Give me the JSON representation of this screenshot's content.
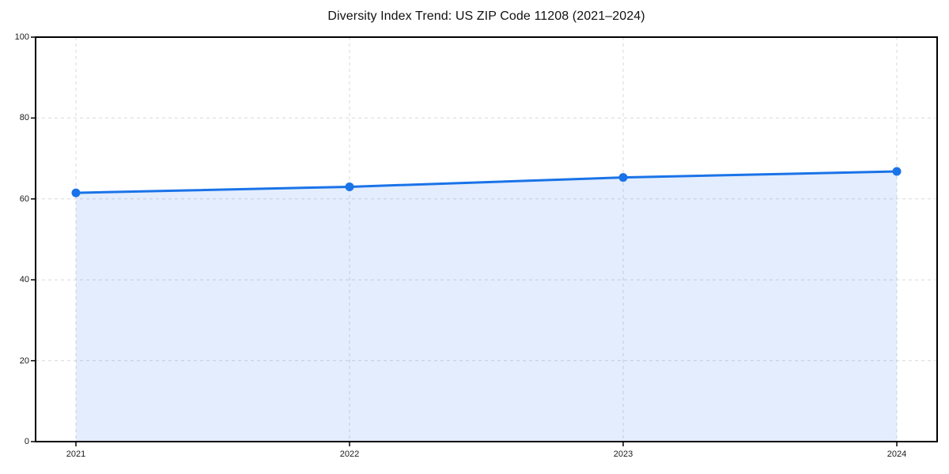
{
  "chart_data": {
    "type": "area",
    "title": "Diversity Index Trend: US ZIP Code 11208 (2021–2024)",
    "categories": [
      "2021",
      "2022",
      "2023",
      "2024"
    ],
    "values": [
      61.5,
      63.0,
      65.3,
      66.8
    ],
    "xlabel": "",
    "ylabel": "",
    "ylim": [
      0,
      100
    ],
    "yticks": [
      0,
      20,
      40,
      60,
      80,
      100
    ],
    "grid": "dashed-both-directions",
    "legend": "none",
    "marker": "circle",
    "colors": {
      "line": "#1a73e8",
      "marker": "#1a73e8",
      "area_fill": "rgba(66,133,244,0.15)",
      "gridline": "#d9d9d9",
      "spine": "#000000",
      "title_text": "#111111",
      "tick_text": "#1a1a1a",
      "background": "#ffffff"
    }
  }
}
